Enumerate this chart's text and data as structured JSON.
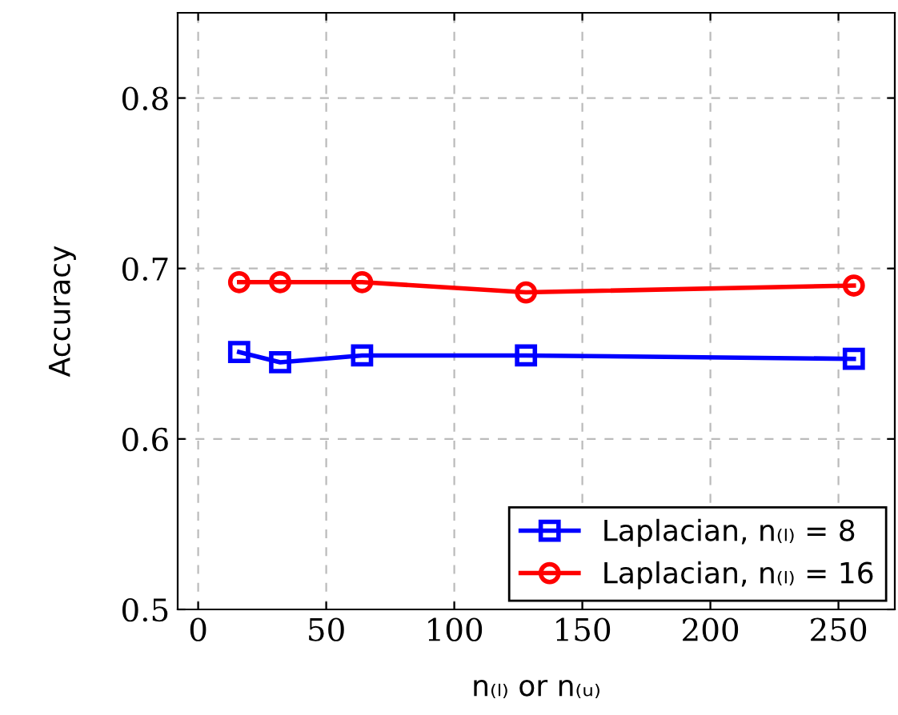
{
  "chart_data": {
    "type": "line",
    "xlabel": "n₍ₗ₎ or n₍ᵤ₎",
    "ylabel": "Accuracy",
    "x": [
      16,
      32,
      64,
      128,
      256
    ],
    "series": [
      {
        "name": "Laplacian, n₍ₗ₎ = 8",
        "color": "#0000ff",
        "marker": "square",
        "values": [
          0.651,
          0.645,
          0.649,
          0.649,
          0.647
        ]
      },
      {
        "name": "Laplacian, n₍ₗ₎ = 16",
        "color": "#ff0000",
        "marker": "circle",
        "values": [
          0.692,
          0.692,
          0.692,
          0.686,
          0.69
        ]
      }
    ],
    "xlim": [
      -8,
      272
    ],
    "xticks": [
      0,
      50,
      100,
      150,
      200,
      250
    ],
    "ylim": [
      0.5,
      0.85
    ],
    "yticks": [
      0.5,
      0.6,
      0.7,
      0.8
    ],
    "grid": true,
    "legend": "bottom right",
    "line_style": "solid"
  }
}
